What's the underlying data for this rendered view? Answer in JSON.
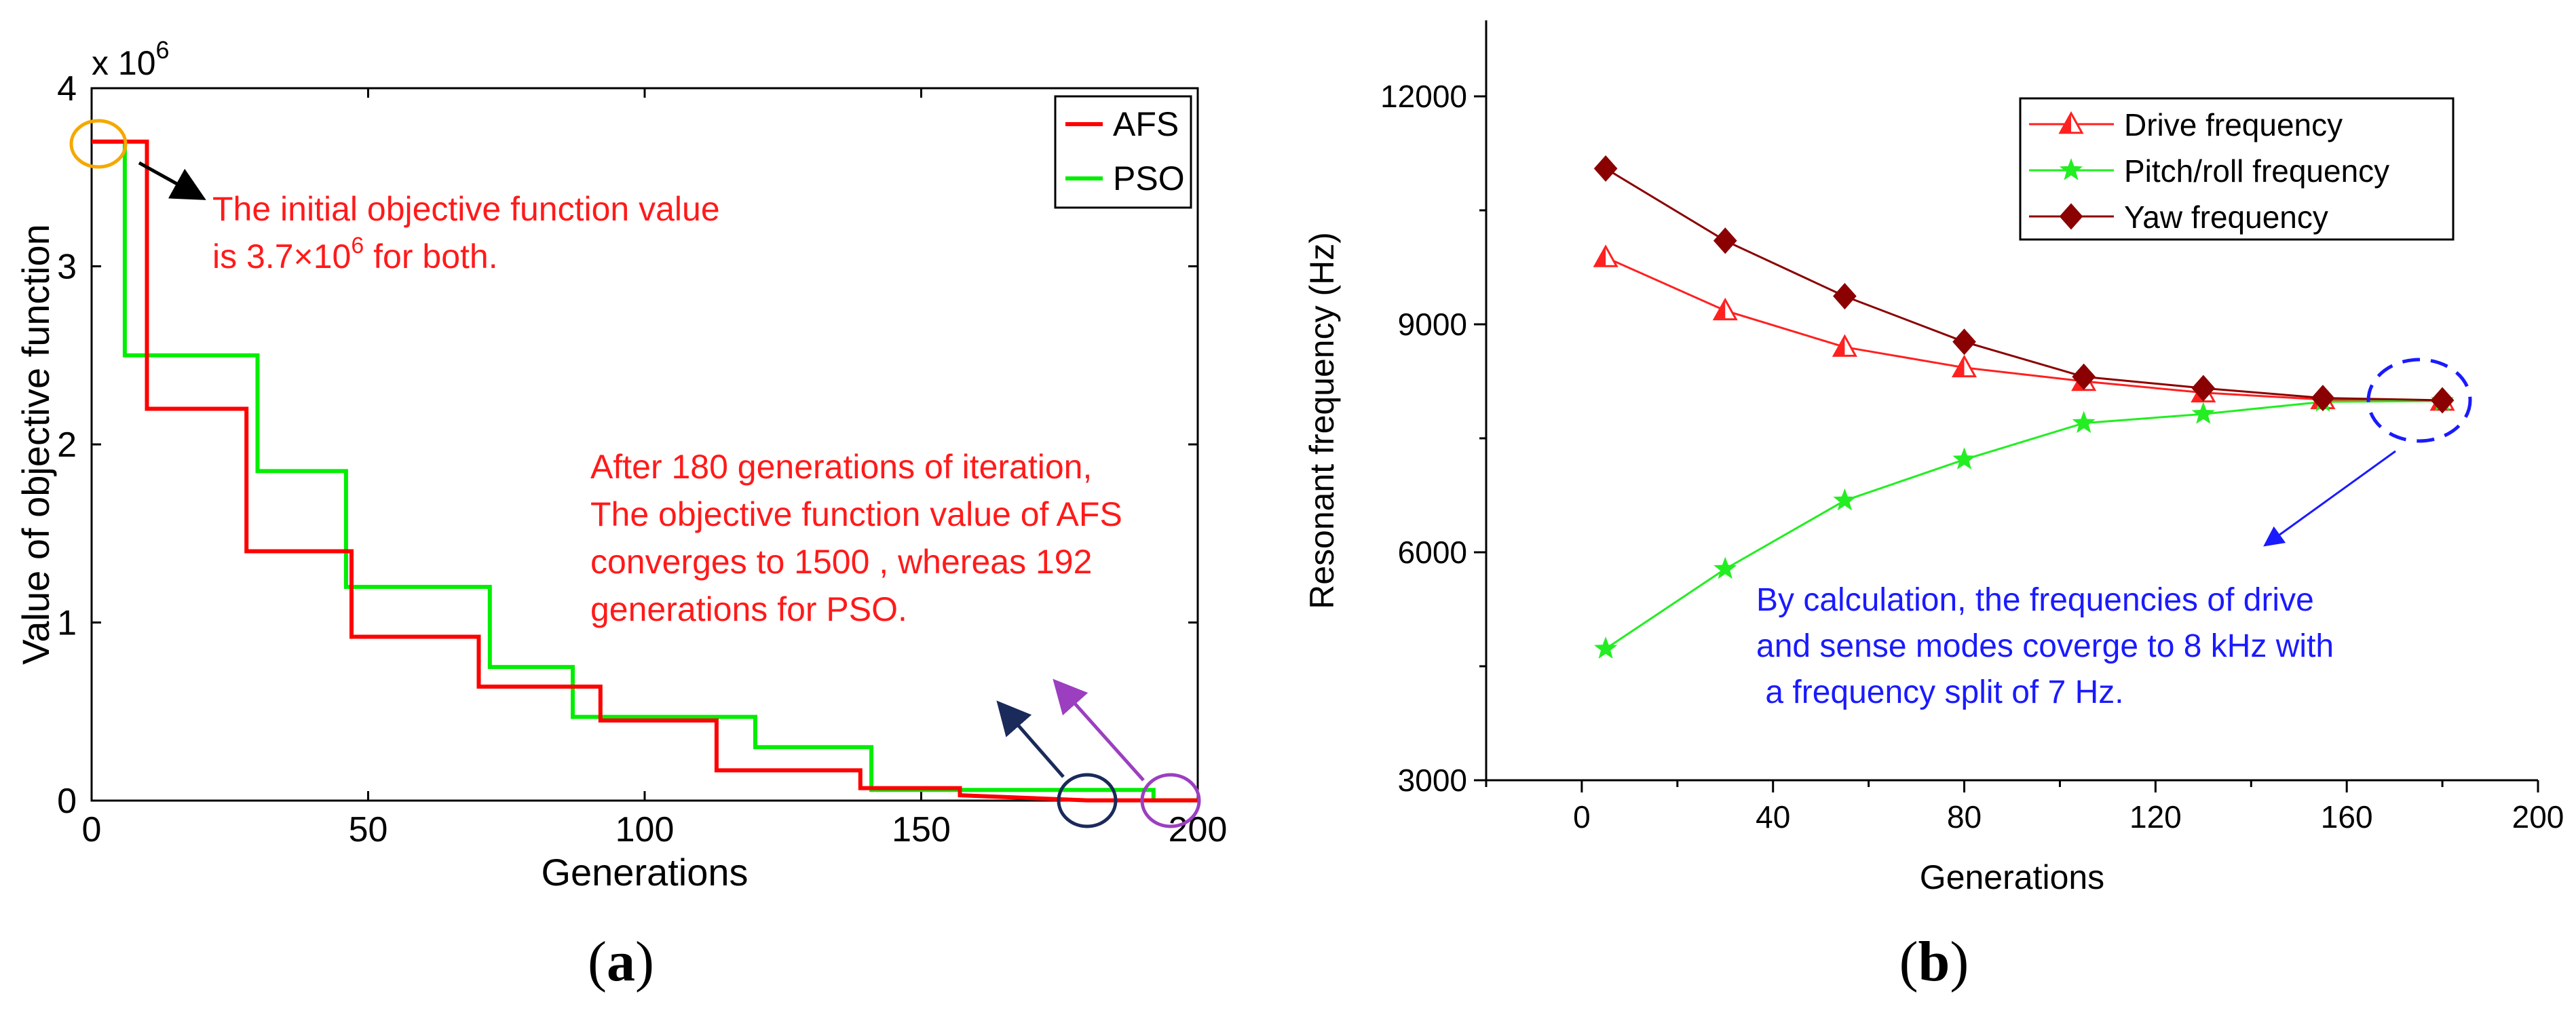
{
  "chart_data": [
    {
      "panel": "(a)",
      "panel_letter": "a",
      "type": "line",
      "step": true,
      "xlabel": "Generations",
      "ylabel": "Value of objective function",
      "xlim": [
        0,
        200
      ],
      "ylim": [
        0,
        4
      ],
      "xticks": [
        0,
        50,
        100,
        150,
        200
      ],
      "yticks": [
        0,
        1,
        2,
        3,
        4
      ],
      "y_multiplier": {
        "base": "x 10",
        "exp": "6"
      },
      "grid": false,
      "legend_position": "top-right",
      "series": [
        {
          "name": "AFS",
          "color": "#ff0000",
          "x": [
            0,
            10,
            10,
            28,
            28,
            47,
            47,
            70,
            70,
            92,
            92,
            113,
            113,
            139,
            139,
            157,
            157,
            180,
            200
          ],
          "y": [
            3.7,
            3.7,
            2.2,
            2.2,
            1.4,
            1.4,
            0.92,
            0.92,
            0.64,
            0.64,
            0.45,
            0.45,
            0.17,
            0.17,
            0.07,
            0.07,
            0.03,
            0.0015,
            0.0015
          ]
        },
        {
          "name": "PSO",
          "color": "#00ee00",
          "x": [
            0,
            6,
            6,
            30,
            30,
            46,
            46,
            72,
            72,
            87,
            87,
            120,
            120,
            141,
            141,
            192,
            192,
            200
          ],
          "y": [
            3.7,
            3.7,
            2.5,
            2.5,
            1.85,
            1.85,
            1.2,
            1.2,
            0.75,
            0.75,
            0.47,
            0.47,
            0.3,
            0.3,
            0.06,
            0.06,
            0.0015,
            0.0015
          ]
        }
      ],
      "annotations": {
        "initial_text_line1": "The initial objective function value",
        "initial_text_prefix": "is  3.7×10",
        "initial_text_sup": "6",
        "initial_text_suffix": "  for both.",
        "converge_lines": [
          "After 180 generations of iteration,",
          "The objective function value of AFS",
          "converges to 1500 , whereas 192",
          "generations for PSO."
        ],
        "text_color": "#ff1a1a",
        "marker_colors": {
          "initial": "#f5a800",
          "afs": "#1a2a5a",
          "pso": "#9b3fc0"
        }
      }
    },
    {
      "panel": "(b)",
      "panel_letter": "b",
      "type": "line",
      "xlabel": "Generations",
      "ylabel": "Resonant frequency (Hz)",
      "xlim": [
        -20,
        200
      ],
      "ylim": [
        3000,
        13000
      ],
      "xticks": [
        0,
        40,
        80,
        120,
        160,
        200
      ],
      "yticks": [
        3000,
        6000,
        9000,
        12000
      ],
      "grid": false,
      "legend_position": "top-right",
      "series": [
        {
          "name": "Drive frequency",
          "marker": "triangle",
          "color": "#ff2020",
          "x": [
            5,
            30,
            55,
            80,
            105,
            130,
            155,
            180
          ],
          "y": [
            9880,
            9180,
            8700,
            8430,
            8250,
            8100,
            8010,
            7990
          ]
        },
        {
          "name": "Pitch/roll frequency",
          "marker": "star",
          "color": "#22ee22",
          "x": [
            5,
            30,
            55,
            80,
            105,
            130,
            155,
            180
          ],
          "y": [
            4730,
            5780,
            6680,
            7220,
            7700,
            7820,
            7980,
            7990
          ]
        },
        {
          "name": "Yaw frequency",
          "marker": "diamond",
          "color": "#8b0000",
          "x": [
            5,
            30,
            55,
            80,
            105,
            130,
            155,
            180
          ],
          "y": [
            11050,
            10100,
            9370,
            8770,
            8310,
            8160,
            8030,
            8000
          ]
        }
      ],
      "annotations": {
        "lines": [
          "By calculation, the frequencies of drive",
          "and sense modes coverge to 8 kHz with",
          " a frequency split of 7 Hz."
        ],
        "text_color": "#1a1aff"
      }
    }
  ]
}
